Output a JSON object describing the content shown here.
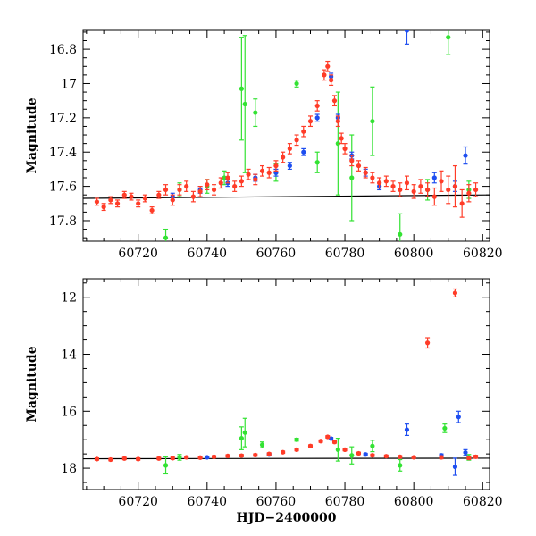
{
  "chart_data": [
    {
      "type": "scatter",
      "panel": "top",
      "title": "",
      "xlabel": "",
      "ylabel": "Magnitude",
      "xlim": [
        60704,
        60822
      ],
      "ylim": [
        17.92,
        16.69
      ],
      "y_inverted": true,
      "xticks": [
        60720,
        60740,
        60760,
        60780,
        60800,
        60820
      ],
      "xtick_labels": [
        "60720",
        "60740",
        "60760",
        "60780",
        "60800",
        "60820"
      ],
      "yticks": [
        16.8,
        17.0,
        17.2,
        17.4,
        17.6,
        17.8
      ],
      "ytick_labels": [
        "16.8",
        "17",
        "17.2",
        "17.4",
        "17.6",
        "17.8"
      ],
      "grid": false,
      "legend": "none",
      "trend_line": {
        "x": [
          60704,
          60822
        ],
        "y": [
          17.67,
          17.65
        ]
      },
      "series": [
        {
          "color": "#ff3c28",
          "points": [
            [
              60708,
              17.69,
              0.02
            ],
            [
              60710,
              17.72,
              0.02
            ],
            [
              60712,
              17.68,
              0.02
            ],
            [
              60714,
              17.7,
              0.02
            ],
            [
              60716,
              17.65,
              0.02
            ],
            [
              60718,
              17.66,
              0.02
            ],
            [
              60720,
              17.7,
              0.02
            ],
            [
              60722,
              17.67,
              0.02
            ],
            [
              60724,
              17.74,
              0.02
            ],
            [
              60726,
              17.65,
              0.02
            ],
            [
              60728,
              17.62,
              0.03
            ],
            [
              60730,
              17.68,
              0.03
            ],
            [
              60732,
              17.62,
              0.03
            ],
            [
              60734,
              17.6,
              0.03
            ],
            [
              60736,
              17.66,
              0.03
            ],
            [
              60738,
              17.63,
              0.03
            ],
            [
              60740,
              17.59,
              0.03
            ],
            [
              60742,
              17.62,
              0.03
            ],
            [
              60744,
              17.58,
              0.03
            ],
            [
              60746,
              17.55,
              0.03
            ],
            [
              60748,
              17.6,
              0.03
            ],
            [
              60750,
              17.57,
              0.03
            ],
            [
              60752,
              17.53,
              0.03
            ],
            [
              60754,
              17.56,
              0.03
            ],
            [
              60756,
              17.51,
              0.03
            ],
            [
              60758,
              17.52,
              0.03
            ],
            [
              60760,
              17.48,
              0.03
            ],
            [
              60762,
              17.43,
              0.03
            ],
            [
              60764,
              17.38,
              0.03
            ],
            [
              60766,
              17.33,
              0.03
            ],
            [
              60768,
              17.28,
              0.03
            ],
            [
              60770,
              17.22,
              0.03
            ],
            [
              60772,
              17.13,
              0.03
            ],
            [
              60774,
              16.95,
              0.03
            ],
            [
              60775,
              16.9,
              0.03
            ],
            [
              60776,
              16.98,
              0.03
            ],
            [
              60777,
              17.1,
              0.03
            ],
            [
              60778,
              17.22,
              0.03
            ],
            [
              60779,
              17.32,
              0.03
            ],
            [
              60780,
              17.38,
              0.03
            ],
            [
              60782,
              17.45,
              0.03
            ],
            [
              60784,
              17.48,
              0.03
            ],
            [
              60786,
              17.52,
              0.03
            ],
            [
              60788,
              17.55,
              0.03
            ],
            [
              60790,
              17.58,
              0.03
            ],
            [
              60792,
              17.57,
              0.03
            ],
            [
              60794,
              17.6,
              0.03
            ],
            [
              60796,
              17.62,
              0.04
            ],
            [
              60798,
              17.58,
              0.04
            ],
            [
              60800,
              17.63,
              0.04
            ],
            [
              60802,
              17.6,
              0.04
            ],
            [
              60804,
              17.62,
              0.04
            ],
            [
              60806,
              17.66,
              0.05
            ],
            [
              60808,
              17.57,
              0.06
            ],
            [
              60810,
              17.62,
              0.08
            ],
            [
              60812,
              17.6,
              0.12
            ],
            [
              60814,
              17.7,
              0.08
            ],
            [
              60816,
              17.64,
              0.05
            ],
            [
              60818,
              17.62,
              0.04
            ]
          ]
        },
        {
          "color": "#1e4ef0",
          "points": [
            [
              60730,
              17.66,
              0.02
            ],
            [
              60738,
              17.62,
              0.02
            ],
            [
              60746,
              17.58,
              0.02
            ],
            [
              60754,
              17.55,
              0.02
            ],
            [
              60760,
              17.52,
              0.02
            ],
            [
              60764,
              17.48,
              0.02
            ],
            [
              60768,
              17.4,
              0.02
            ],
            [
              60772,
              17.2,
              0.02
            ],
            [
              60776,
              16.96,
              0.02
            ],
            [
              60778,
              17.2,
              0.02
            ],
            [
              60782,
              17.42,
              0.02
            ],
            [
              60786,
              17.52,
              0.02
            ],
            [
              60790,
              17.6,
              0.02
            ],
            [
              60798,
              16.69,
              0.08
            ],
            [
              60806,
              17.55,
              0.03
            ],
            [
              60812,
              17.6,
              0.03
            ],
            [
              60815,
              17.42,
              0.05
            ]
          ]
        },
        {
          "color": "#33e233",
          "points": [
            [
              60728,
              17.9,
              0.05
            ],
            [
              60732,
              17.62,
              0.04
            ],
            [
              60740,
              17.6,
              0.04
            ],
            [
              60745,
              17.55,
              0.04
            ],
            [
              60750,
              17.03,
              0.3
            ],
            [
              60751,
              17.12,
              0.4
            ],
            [
              60754,
              17.17,
              0.08
            ],
            [
              60760,
              17.52,
              0.05
            ],
            [
              60766,
              17.0,
              0.02
            ],
            [
              60772,
              17.46,
              0.06
            ],
            [
              60778,
              17.35,
              0.3
            ],
            [
              60782,
              17.55,
              0.25
            ],
            [
              60788,
              17.22,
              0.2
            ],
            [
              60796,
              17.88,
              0.12
            ],
            [
              60804,
              17.62,
              0.06
            ],
            [
              60810,
              16.73,
              0.1
            ],
            [
              60816,
              17.62,
              0.05
            ]
          ]
        }
      ]
    },
    {
      "type": "scatter",
      "panel": "bottom",
      "title": "",
      "xlabel": "HJD−2400000",
      "ylabel": "Magnitude",
      "xlim": [
        60704,
        60822
      ],
      "ylim": [
        18.75,
        11.35
      ],
      "y_inverted": true,
      "xticks": [
        60720,
        60740,
        60760,
        60780,
        60800,
        60820
      ],
      "xtick_labels": [
        "60720",
        "60740",
        "60760",
        "60780",
        "60800",
        "60820"
      ],
      "yticks": [
        12,
        14,
        16,
        18
      ],
      "ytick_labels": [
        "12",
        "14",
        "16",
        "18"
      ],
      "grid": false,
      "legend": "none",
      "trend_line": {
        "x": [
          60704,
          60822
        ],
        "y": [
          17.67,
          17.65
        ]
      },
      "series": [
        {
          "color": "#ff3c28",
          "points": [
            [
              60708,
              17.68,
              0.04
            ],
            [
              60712,
              17.7,
              0.04
            ],
            [
              60716,
              17.66,
              0.04
            ],
            [
              60720,
              17.68,
              0.04
            ],
            [
              60726,
              17.66,
              0.04
            ],
            [
              60730,
              17.65,
              0.04
            ],
            [
              60734,
              17.62,
              0.04
            ],
            [
              60738,
              17.63,
              0.04
            ],
            [
              60742,
              17.6,
              0.04
            ],
            [
              60746,
              17.57,
              0.04
            ],
            [
              60750,
              17.56,
              0.04
            ],
            [
              60754,
              17.54,
              0.04
            ],
            [
              60758,
              17.5,
              0.04
            ],
            [
              60762,
              17.44,
              0.04
            ],
            [
              60766,
              17.35,
              0.04
            ],
            [
              60770,
              17.22,
              0.04
            ],
            [
              60773,
              17.05,
              0.04
            ],
            [
              60775,
              16.9,
              0.04
            ],
            [
              60777,
              17.08,
              0.04
            ],
            [
              60780,
              17.35,
              0.04
            ],
            [
              60784,
              17.48,
              0.04
            ],
            [
              60788,
              17.55,
              0.04
            ],
            [
              60792,
              17.58,
              0.04
            ],
            [
              60796,
              17.6,
              0.04
            ],
            [
              60800,
              17.62,
              0.04
            ],
            [
              60804,
              13.6,
              0.18
            ],
            [
              60808,
              17.62,
              0.05
            ],
            [
              60812,
              11.85,
              0.14
            ],
            [
              60816,
              17.64,
              0.05
            ],
            [
              60818,
              17.6,
              0.05
            ]
          ]
        },
        {
          "color": "#1e4ef0",
          "points": [
            [
              60740,
              17.62,
              0.04
            ],
            [
              60758,
              17.52,
              0.04
            ],
            [
              60776,
              16.96,
              0.04
            ],
            [
              60786,
              17.52,
              0.04
            ],
            [
              60798,
              16.65,
              0.2
            ],
            [
              60808,
              17.55,
              0.05
            ],
            [
              60812,
              17.95,
              0.3
            ],
            [
              60813,
              16.2,
              0.2
            ],
            [
              60815,
              17.45,
              0.1
            ]
          ]
        },
        {
          "color": "#33e233",
          "points": [
            [
              60728,
              17.9,
              0.3
            ],
            [
              60732,
              17.62,
              0.1
            ],
            [
              60750,
              16.95,
              0.4
            ],
            [
              60751,
              16.75,
              0.5
            ],
            [
              60756,
              17.18,
              0.1
            ],
            [
              60766,
              17.0,
              0.05
            ],
            [
              60778,
              17.35,
              0.4
            ],
            [
              60782,
              17.55,
              0.3
            ],
            [
              60788,
              17.22,
              0.2
            ],
            [
              60796,
              17.9,
              0.2
            ],
            [
              60809,
              16.6,
              0.15
            ],
            [
              60816,
              17.62,
              0.1
            ]
          ]
        }
      ]
    }
  ]
}
